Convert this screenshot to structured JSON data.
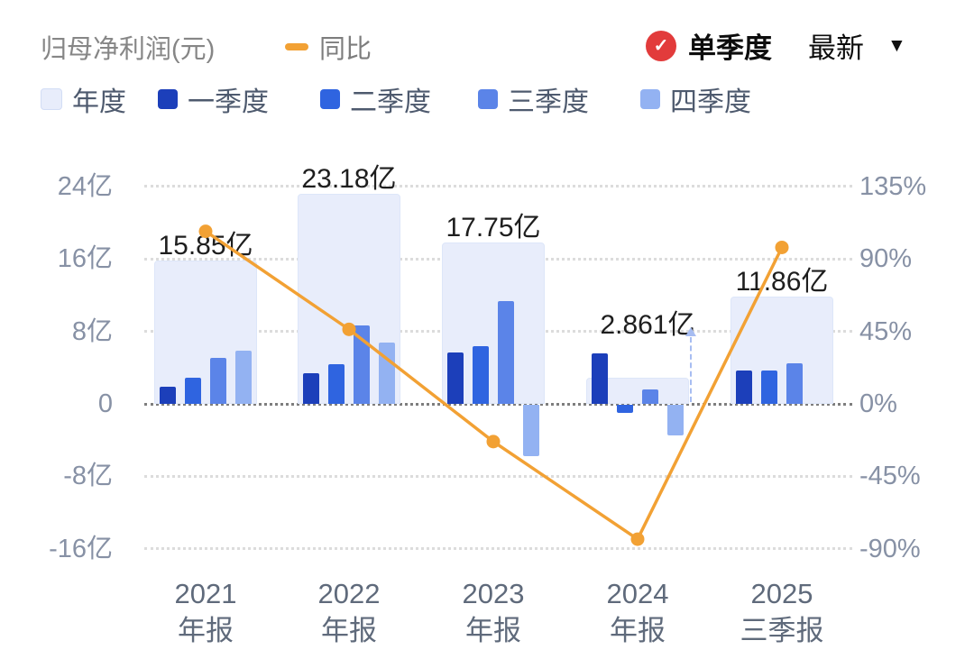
{
  "header": {
    "title": "归母净利润(元)",
    "yoy_legend": "同比",
    "quarter_toggle": "单季度",
    "latest": "最新",
    "check_color": "#e23b3b"
  },
  "icons": {
    "check": "✓",
    "caret": "▼"
  },
  "legend": {
    "items": [
      {
        "label": "年度",
        "color": "#e8edfb"
      },
      {
        "label": "一季度",
        "color": "#1c3fba"
      },
      {
        "label": "二季度",
        "color": "#2f64e0"
      },
      {
        "label": "三季度",
        "color": "#5b84e8"
      },
      {
        "label": "四季度",
        "color": "#93b2f2"
      }
    ]
  },
  "chart_data": {
    "type": "bar+line",
    "title": "归母净利润(元)",
    "legend_position": "top",
    "grid": "dotted-horizontal",
    "categories": [
      [
        "2021",
        "年报"
      ],
      [
        "2022",
        "年报"
      ],
      [
        "2023",
        "年报"
      ],
      [
        "2024",
        "年报"
      ],
      [
        "2025",
        "三季报"
      ]
    ],
    "left_axis": {
      "unit": "亿",
      "ticks": [
        "24亿",
        "16亿",
        "8亿",
        "0",
        "-8亿",
        "-16亿"
      ],
      "values": [
        24,
        16,
        8,
        0,
        -8,
        -16
      ],
      "range": [
        -16,
        24
      ]
    },
    "right_axis": {
      "unit": "%",
      "ticks": [
        "135%",
        "90%",
        "45%",
        "0%",
        "-45%",
        "-90%"
      ],
      "values": [
        135,
        90,
        45,
        0,
        -45,
        -90
      ],
      "range": [
        -90,
        135
      ]
    },
    "annual": {
      "name": "年度",
      "values": [
        15.85,
        23.18,
        17.75,
        2.861,
        11.86
      ],
      "labels": [
        "15.85亿",
        "23.18亿",
        "17.75亿",
        "2.861亿",
        "11.86亿"
      ]
    },
    "quarters": [
      {
        "name": "一季度",
        "values": [
          1.9,
          3.4,
          5.7,
          5.6,
          3.7
        ]
      },
      {
        "name": "二季度",
        "values": [
          2.9,
          4.4,
          6.4,
          -0.9,
          3.7
        ]
      },
      {
        "name": "三季度",
        "values": [
          5.1,
          8.6,
          11.3,
          1.6,
          4.5
        ]
      },
      {
        "name": "四季度",
        "values": [
          5.9,
          6.8,
          -5.7,
          -3.4,
          null
        ]
      }
    ],
    "yoy": {
      "name": "同比",
      "values": [
        107,
        46.2,
        -23.4,
        -83.9,
        97
      ],
      "unit": "%",
      "color": "#f2a134"
    }
  }
}
